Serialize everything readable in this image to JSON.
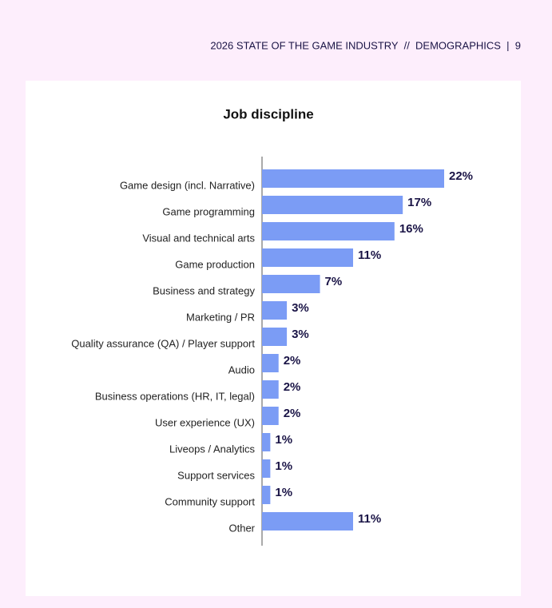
{
  "page_header": "2026 STATE OF THE GAME INDUSTRY  //  DEMOGRAPHICS  |  9",
  "chart_data": {
    "type": "bar",
    "orientation": "horizontal",
    "title": "Job discipline",
    "categories": [
      "Game design (incl. Narrative)",
      "Game programming",
      "Visual and technical arts",
      "Game production",
      "Business and strategy",
      "Marketing / PR",
      "Quality assurance (QA) / Player support",
      "Audio",
      "Business operations (HR, IT, legal)",
      "User experience (UX)",
      "Liveops / Analytics",
      "Support services",
      "Community support",
      "Other"
    ],
    "values": [
      22,
      17,
      16,
      11,
      7,
      3,
      3,
      2,
      2,
      2,
      1,
      1,
      1,
      11
    ],
    "value_labels": [
      "22%",
      "17%",
      "16%",
      "11%",
      "7%",
      "3%",
      "3%",
      "2%",
      "2%",
      "2%",
      "1%",
      "1%",
      "1%",
      "11%"
    ],
    "color": "#7b9cf5"
  }
}
